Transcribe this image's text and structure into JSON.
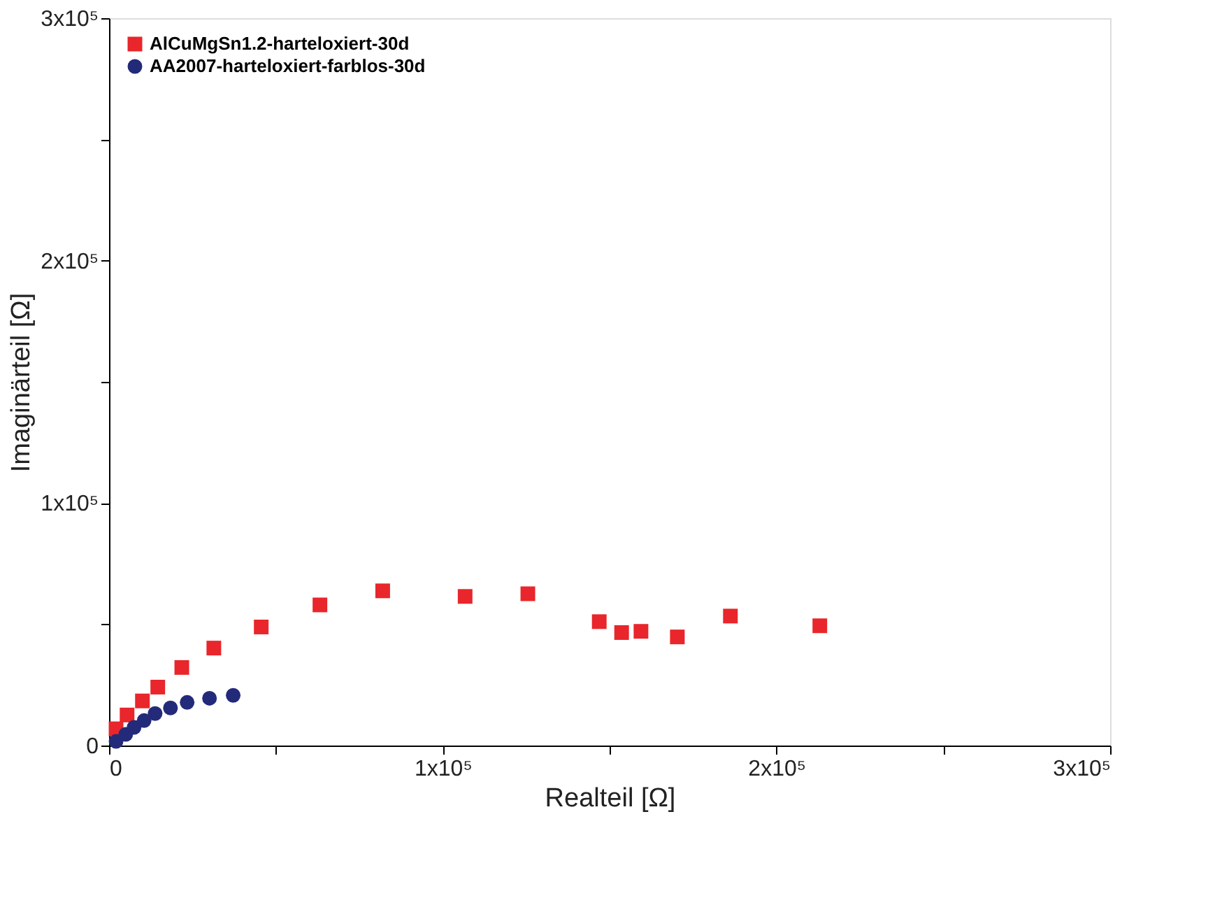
{
  "chart_data": {
    "type": "scatter",
    "xlabel": "Realteil [Ω]",
    "ylabel": "Imaginärteil [Ω]",
    "xlim": [
      0,
      300000
    ],
    "ylim": [
      0,
      300000
    ],
    "xticks": [
      {
        "value": 0,
        "label": "0"
      },
      {
        "value": 50000,
        "label": null
      },
      {
        "value": 100000,
        "label": "1x10⁵"
      },
      {
        "value": 150000,
        "label": null
      },
      {
        "value": 200000,
        "label": "2x10⁵"
      },
      {
        "value": 250000,
        "label": null
      },
      {
        "value": 300000,
        "label": "3x10⁵"
      }
    ],
    "yticks": [
      {
        "value": 0,
        "label": "0"
      },
      {
        "value": 50000,
        "label": null
      },
      {
        "value": 100000,
        "label": "1x10⁵"
      },
      {
        "value": 150000,
        "label": null
      },
      {
        "value": 200000,
        "label": "2x10⁵"
      },
      {
        "value": 250000,
        "label": null
      },
      {
        "value": 300000,
        "label": "3x10⁵"
      }
    ],
    "grid": false,
    "legend": "top left",
    "series": [
      {
        "name": "AlCuMgSn1.2-harteloxiert-30d",
        "color": "#e8262b",
        "marker": "square",
        "x": [
          2100,
          5400,
          10000,
          14600,
          21800,
          31400,
          45600,
          63200,
          82000,
          106700,
          125500,
          146900,
          153600,
          159400,
          170300,
          186200,
          213000
        ],
        "values": [
          6900,
          12600,
          18400,
          24100,
          32200,
          40200,
          48900,
          58000,
          63800,
          61500,
          62600,
          51100,
          46600,
          47100,
          44800,
          53400,
          49400
        ]
      },
      {
        "name": "AA2007-harteloxiert-farblos-30d",
        "color": "#242a7a",
        "marker": "circle",
        "x": [
          2100,
          5000,
          7500,
          10500,
          13800,
          18400,
          23400,
          30100,
          37200
        ],
        "values": [
          1700,
          4600,
          7500,
          10300,
          13200,
          15500,
          17800,
          19500,
          20700
        ]
      }
    ]
  }
}
